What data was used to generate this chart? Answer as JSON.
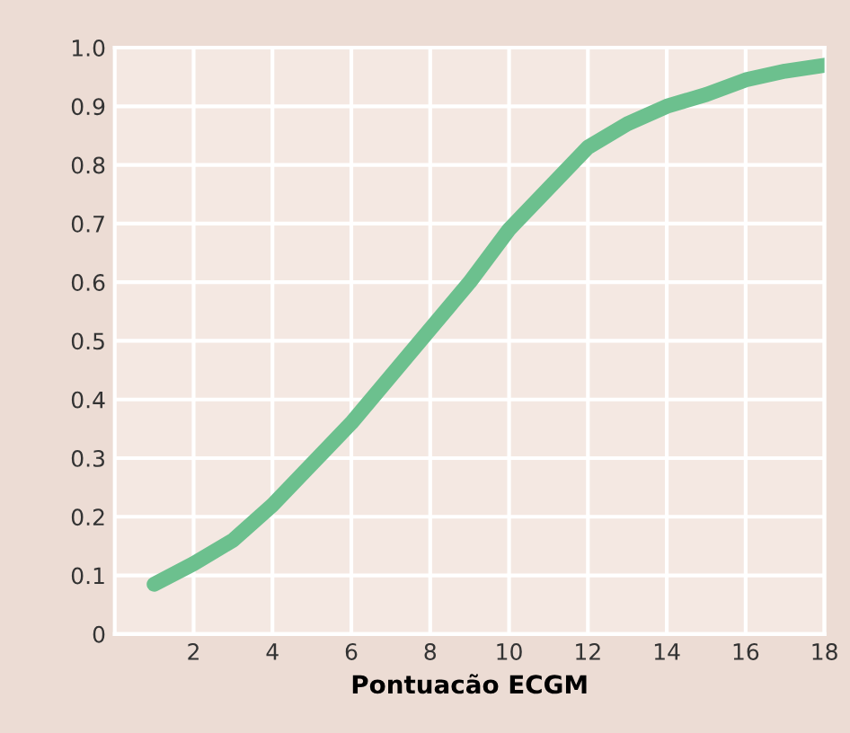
{
  "chart_data": {
    "type": "line",
    "xlabel": "Pontuacão ECGM",
    "x": [
      1,
      2,
      3,
      4,
      5,
      6,
      7,
      8,
      9,
      10,
      11,
      12,
      13,
      14,
      15,
      16,
      17,
      18
    ],
    "series": [
      {
        "color": "#6cc08e",
        "values": [
          0.085,
          0.12,
          0.16,
          0.22,
          0.29,
          0.36,
          0.44,
          0.52,
          0.6,
          0.69,
          0.76,
          0.83,
          0.87,
          0.9,
          0.92,
          0.945,
          0.96,
          0.97
        ]
      }
    ],
    "xlim": [
      0,
      18
    ],
    "ylim": [
      0,
      1.0
    ],
    "xticks": [
      2,
      4,
      6,
      8,
      10,
      12,
      14,
      16,
      18
    ],
    "yticks": [
      {
        "value": 0,
        "label": "0"
      },
      0.1,
      0.2,
      0.3,
      0.4,
      0.5,
      0.6,
      0.7,
      0.8,
      0.9,
      {
        "value": 1.0,
        "label": "1.0"
      }
    ],
    "grid": true,
    "marker": "none",
    "line_style": "solid"
  }
}
